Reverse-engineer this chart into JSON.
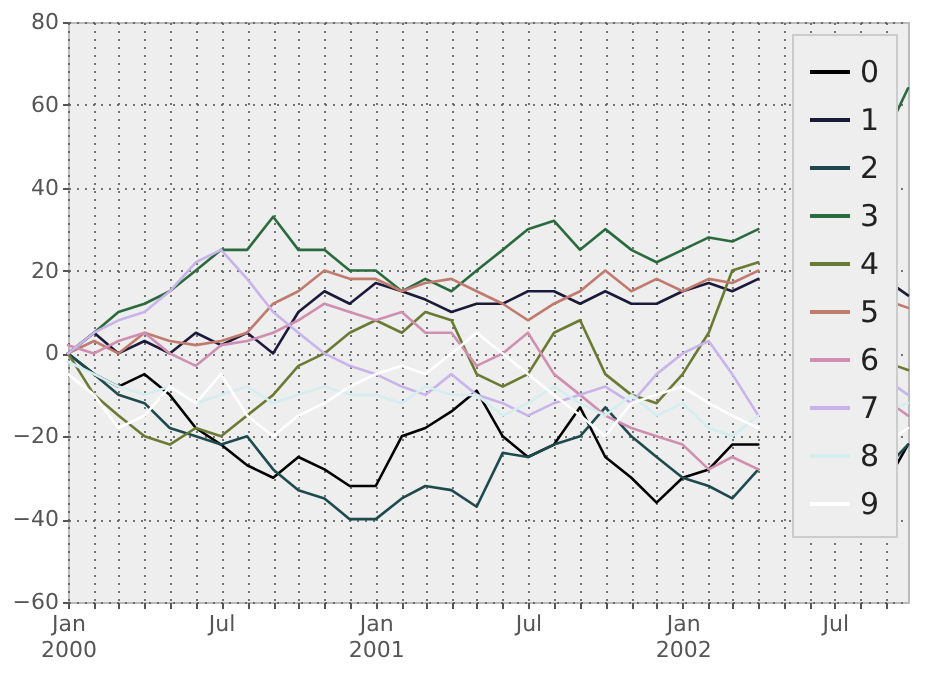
{
  "chart_data": {
    "type": "line",
    "x": [
      "2000-01-01",
      "2000-02-01",
      "2000-03-01",
      "2000-04-01",
      "2000-05-01",
      "2000-06-01",
      "2000-07-01",
      "2000-08-01",
      "2000-09-01",
      "2000-10-01",
      "2000-11-01",
      "2000-12-01",
      "2001-01-01",
      "2001-02-01",
      "2001-03-01",
      "2001-04-01",
      "2001-05-01",
      "2001-06-01",
      "2001-07-01",
      "2001-08-01",
      "2001-09-01",
      "2001-10-01",
      "2001-11-01",
      "2001-12-01",
      "2002-01-01",
      "2002-02-01",
      "2002-03-01",
      "2002-04-01",
      "2002-05-01",
      "2002-06-01",
      "2002-07-01",
      "2002-08-01",
      "2002-09-12",
      "2002-09-26"
    ],
    "series": [
      {
        "name": "0",
        "color": "#000000",
        "values": [
          0,
          -5,
          -8,
          -5,
          -10,
          -18,
          -22,
          -27,
          -30,
          -25,
          -28,
          -32,
          -32,
          -20,
          -18,
          -14,
          -9,
          -20,
          -25,
          -22,
          -13,
          -25,
          -30,
          -36,
          -30,
          -28,
          -22,
          -22,
          null,
          null,
          null,
          null,
          -27,
          -22
        ]
      },
      {
        "name": "1",
        "color": "#1b1a3a",
        "values": [
          0,
          5,
          0,
          3,
          0,
          5,
          2,
          5,
          0,
          10,
          15,
          12,
          17,
          15,
          13,
          10,
          12,
          12,
          15,
          15,
          12,
          15,
          12,
          12,
          15,
          17,
          15,
          18,
          null,
          null,
          null,
          null,
          16,
          14
        ]
      },
      {
        "name": "2",
        "color": "#1e4a4e",
        "values": [
          0,
          -5,
          -10,
          -12,
          -18,
          -20,
          -22,
          -20,
          -28,
          -33,
          -35,
          -40,
          -40,
          -35,
          -32,
          -33,
          -37,
          -24,
          -25,
          -22,
          -20,
          -13,
          -20,
          -25,
          -30,
          -32,
          -35,
          -28,
          null,
          null,
          null,
          null,
          -25,
          -22
        ]
      },
      {
        "name": "3",
        "color": "#2a6b3e",
        "values": [
          0,
          5,
          10,
          12,
          15,
          20,
          25,
          25,
          33,
          25,
          25,
          20,
          20,
          15,
          18,
          15,
          20,
          25,
          30,
          32,
          25,
          30,
          25,
          22,
          25,
          28,
          27,
          30,
          null,
          null,
          null,
          null,
          58,
          64
        ]
      },
      {
        "name": "4",
        "color": "#6b7a32",
        "values": [
          0,
          -10,
          -15,
          -20,
          -22,
          -18,
          -20,
          -15,
          -10,
          -3,
          0,
          5,
          8,
          5,
          10,
          8,
          -5,
          -8,
          -5,
          5,
          8,
          -5,
          -10,
          -12,
          -5,
          5,
          20,
          22,
          null,
          null,
          null,
          null,
          -3,
          -4
        ]
      },
      {
        "name": "5",
        "color": "#c07a6e",
        "values": [
          0,
          3,
          0,
          5,
          3,
          2,
          3,
          5,
          12,
          15,
          20,
          18,
          18,
          15,
          17,
          18,
          15,
          12,
          8,
          12,
          15,
          20,
          15,
          18,
          15,
          18,
          17,
          20,
          null,
          null,
          null,
          null,
          12,
          11
        ]
      },
      {
        "name": "6",
        "color": "#d08fb0",
        "values": [
          2,
          0,
          3,
          5,
          0,
          -3,
          2,
          3,
          5,
          8,
          12,
          10,
          8,
          10,
          5,
          5,
          -3,
          0,
          5,
          -5,
          -10,
          -15,
          -18,
          -20,
          -22,
          -28,
          -25,
          -28,
          null,
          null,
          null,
          null,
          -13,
          -15
        ]
      },
      {
        "name": "7",
        "color": "#c8b4ea",
        "values": [
          0,
          5,
          8,
          10,
          15,
          22,
          25,
          18,
          10,
          5,
          0,
          -3,
          -5,
          -8,
          -10,
          -5,
          -10,
          -12,
          -15,
          -12,
          -10,
          -8,
          -12,
          -5,
          0,
          3,
          -5,
          -15,
          null,
          null,
          null,
          null,
          -8,
          -10
        ]
      },
      {
        "name": "8",
        "color": "#d4eef0",
        "values": [
          -2,
          -5,
          -8,
          -10,
          -8,
          -12,
          -10,
          -8,
          -12,
          -10,
          -8,
          -10,
          -10,
          -12,
          -8,
          -10,
          -10,
          -15,
          -12,
          -8,
          -12,
          -15,
          -10,
          -15,
          -12,
          -18,
          -20,
          -15,
          null,
          null,
          null,
          null,
          -13,
          -12
        ]
      },
      {
        "name": "9",
        "color": "#ffffff",
        "values": [
          -5,
          -10,
          -18,
          -15,
          -8,
          -12,
          -5,
          -15,
          -20,
          -15,
          -12,
          -8,
          -5,
          -3,
          -5,
          0,
          5,
          0,
          -5,
          -10,
          -15,
          -20,
          -12,
          -10,
          -8,
          -12,
          -15,
          -18,
          null,
          null,
          null,
          null,
          -20,
          -18
        ]
      }
    ],
    "xlim": [
      "2000-01-01",
      "2002-09-26"
    ],
    "xticks": [
      {
        "value": "2000-01-01",
        "label": "Jan 2000"
      },
      {
        "value": "2000-02-01",
        "label": null
      },
      {
        "value": "2000-03-01",
        "label": null
      },
      {
        "value": "2000-04-01",
        "label": null
      },
      {
        "value": "2000-05-01",
        "label": null
      },
      {
        "value": "2000-06-01",
        "label": null
      },
      {
        "value": "2000-07-01",
        "label": "Jul"
      },
      {
        "value": "2000-08-01",
        "label": null
      },
      {
        "value": "2000-09-01",
        "label": null
      },
      {
        "value": "2000-10-01",
        "label": null
      },
      {
        "value": "2000-11-01",
        "label": null
      },
      {
        "value": "2000-12-01",
        "label": null
      },
      {
        "value": "2001-01-01",
        "label": "Jan 2001"
      },
      {
        "value": "2001-02-01",
        "label": null
      },
      {
        "value": "2001-03-01",
        "label": null
      },
      {
        "value": "2001-04-01",
        "label": null
      },
      {
        "value": "2001-05-01",
        "label": null
      },
      {
        "value": "2001-06-01",
        "label": null
      },
      {
        "value": "2001-07-01",
        "label": "Jul"
      },
      {
        "value": "2001-08-01",
        "label": null
      },
      {
        "value": "2001-09-01",
        "label": null
      },
      {
        "value": "2001-10-01",
        "label": null
      },
      {
        "value": "2001-11-01",
        "label": null
      },
      {
        "value": "2001-12-01",
        "label": null
      },
      {
        "value": "2002-01-01",
        "label": "Jan 2002"
      },
      {
        "value": "2002-02-01",
        "label": null
      },
      {
        "value": "2002-03-01",
        "label": null
      },
      {
        "value": "2002-04-01",
        "label": null
      },
      {
        "value": "2002-05-01",
        "label": null
      },
      {
        "value": "2002-06-01",
        "label": null
      },
      {
        "value": "2002-07-01",
        "label": "Jul"
      },
      {
        "value": "2002-08-01",
        "label": null
      },
      {
        "value": "2002-09-01",
        "label": null
      }
    ],
    "ylim": [
      -60,
      80
    ],
    "yticks": [
      {
        "value": -60,
        "label": "−60"
      },
      {
        "value": -40,
        "label": "−40"
      },
      {
        "value": -20,
        "label": "−20"
      },
      0,
      20,
      40,
      60,
      80
    ],
    "grid": true,
    "legend": "top right",
    "line_style": "solid",
    "marker": "none"
  }
}
